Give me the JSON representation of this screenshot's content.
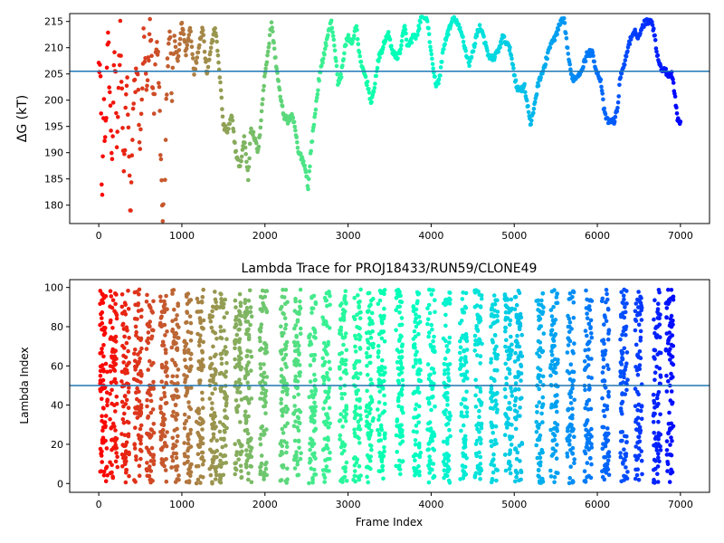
{
  "chart_data": [
    {
      "type": "scatter",
      "title": "",
      "xlabel": "",
      "ylabel": "ΔG (kT)",
      "xlim": [
        -350,
        7350
      ],
      "ylim": [
        176.5,
        216.5
      ],
      "xticks": [
        0,
        1000,
        2000,
        3000,
        4000,
        5000,
        6000,
        7000
      ],
      "yticks": [
        180,
        185,
        190,
        195,
        200,
        205,
        210,
        215
      ],
      "hline": 205.5,
      "hline_color": "#1f77b4",
      "colormap": "rainbow",
      "grid": false,
      "legend": "none",
      "x_max": 7000,
      "trace_knots": [
        [
          0,
          210
        ],
        [
          20,
          205
        ],
        [
          40,
          180
        ],
        [
          60,
          200
        ],
        [
          80,
          190
        ],
        [
          110,
          215
        ],
        [
          130,
          200
        ],
        [
          160,
          188
        ],
        [
          190,
          212
        ],
        [
          220,
          192
        ],
        [
          260,
          214
        ],
        [
          300,
          185
        ],
        [
          340,
          205
        ],
        [
          380,
          178
        ],
        [
          420,
          200
        ],
        [
          460,
          207
        ],
        [
          500,
          190
        ],
        [
          540,
          212
        ],
        [
          580,
          200
        ],
        [
          620,
          215
        ],
        [
          660,
          198
        ],
        [
          700,
          213
        ],
        [
          730,
          200
        ],
        [
          760,
          180
        ],
        [
          790,
          176
        ],
        [
          820,
          205
        ],
        [
          850,
          215
        ],
        [
          880,
          200
        ],
        [
          910,
          212
        ],
        [
          950,
          207
        ],
        [
          1000,
          215
        ],
        [
          1050,
          209
        ],
        [
          1100,
          214
        ],
        [
          1150,
          205
        ],
        [
          1200,
          210
        ],
        [
          1250,
          214
        ],
        [
          1300,
          205
        ],
        [
          1350,
          210
        ],
        [
          1400,
          214
        ],
        [
          1450,
          206
        ],
        [
          1500,
          195
        ],
        [
          1550,
          194
        ],
        [
          1600,
          197
        ],
        [
          1650,
          190
        ],
        [
          1700,
          187
        ],
        [
          1750,
          193
        ],
        [
          1800,
          185
        ],
        [
          1830,
          195
        ],
        [
          1870,
          193
        ],
        [
          1920,
          190
        ],
        [
          1960,
          198
        ],
        [
          2000,
          205
        ],
        [
          2050,
          211
        ],
        [
          2080,
          215
        ],
        [
          2110,
          210
        ],
        [
          2150,
          205
        ],
        [
          2190,
          200
        ],
        [
          2230,
          197
        ],
        [
          2280,
          196
        ],
        [
          2320,
          197
        ],
        [
          2360,
          195
        ],
        [
          2400,
          190
        ],
        [
          2450,
          189
        ],
        [
          2500,
          186
        ],
        [
          2520,
          183
        ],
        [
          2550,
          190
        ],
        [
          2600,
          197
        ],
        [
          2650,
          204
        ],
        [
          2700,
          208
        ],
        [
          2750,
          212
        ],
        [
          2800,
          215
        ],
        [
          2840,
          210
        ],
        [
          2880,
          203
        ],
        [
          2920,
          205
        ],
        [
          2960,
          210
        ],
        [
          3000,
          212
        ],
        [
          3050,
          211
        ],
        [
          3100,
          214
        ],
        [
          3150,
          207
        ],
        [
          3200,
          205
        ],
        [
          3250,
          202
        ],
        [
          3280,
          199
        ],
        [
          3320,
          203
        ],
        [
          3370,
          208
        ],
        [
          3420,
          210
        ],
        [
          3480,
          213
        ],
        [
          3520,
          210
        ],
        [
          3580,
          208
        ],
        [
          3620,
          209
        ],
        [
          3680,
          214
        ],
        [
          3720,
          210
        ],
        [
          3780,
          212
        ],
        [
          3830,
          212
        ],
        [
          3880,
          216
        ],
        [
          3940,
          216
        ],
        [
          3980,
          212
        ],
        [
          4020,
          206
        ],
        [
          4060,
          203
        ],
        [
          4100,
          204
        ],
        [
          4140,
          209
        ],
        [
          4180,
          212
        ],
        [
          4230,
          214
        ],
        [
          4280,
          216
        ],
        [
          4330,
          214
        ],
        [
          4380,
          212
        ],
        [
          4420,
          209
        ],
        [
          4460,
          207
        ],
        [
          4500,
          209
        ],
        [
          4540,
          212
        ],
        [
          4580,
          214
        ],
        [
          4620,
          213
        ],
        [
          4660,
          210
        ],
        [
          4700,
          208
        ],
        [
          4760,
          208
        ],
        [
          4820,
          210
        ],
        [
          4860,
          212
        ],
        [
          4910,
          211
        ],
        [
          4960,
          209
        ],
        [
          5000,
          205
        ],
        [
          5040,
          202
        ],
        [
          5080,
          202
        ],
        [
          5120,
          203
        ],
        [
          5160,
          199
        ],
        [
          5200,
          195
        ],
        [
          5240,
          199
        ],
        [
          5300,
          204
        ],
        [
          5360,
          206
        ],
        [
          5420,
          210
        ],
        [
          5460,
          211
        ],
        [
          5520,
          213
        ],
        [
          5560,
          215
        ],
        [
          5600,
          215
        ],
        [
          5640,
          210
        ],
        [
          5680,
          205
        ],
        [
          5720,
          204
        ],
        [
          5780,
          205
        ],
        [
          5840,
          207
        ],
        [
          5880,
          209
        ],
        [
          5940,
          209
        ],
        [
          6000,
          205
        ],
        [
          6040,
          204
        ],
        [
          6080,
          198
        ],
        [
          6120,
          196
        ],
        [
          6160,
          196
        ],
        [
          6200,
          196
        ],
        [
          6240,
          198
        ],
        [
          6280,
          205
        ],
        [
          6330,
          207
        ],
        [
          6380,
          211
        ],
        [
          6420,
          212
        ],
        [
          6460,
          213
        ],
        [
          6500,
          212
        ],
        [
          6540,
          214
        ],
        [
          6580,
          215
        ],
        [
          6620,
          215
        ],
        [
          6650,
          216
        ],
        [
          6690,
          212
        ],
        [
          6720,
          209
        ],
        [
          6760,
          206
        ],
        [
          6800,
          206
        ],
        [
          6850,
          205
        ],
        [
          6900,
          205
        ],
        [
          6940,
          200
        ],
        [
          6970,
          196
        ],
        [
          7000,
          196
        ]
      ]
    },
    {
      "type": "scatter",
      "title": "Lambda Trace for PROJ18433/RUN59/CLONE49",
      "xlabel": "Frame Index",
      "ylabel": "Lambda Index",
      "xlim": [
        -350,
        7350
      ],
      "ylim": [
        -4.5,
        104
      ],
      "xticks": [
        0,
        1000,
        2000,
        3000,
        4000,
        5000,
        6000,
        7000
      ],
      "yticks": [
        0,
        20,
        40,
        60,
        80,
        100
      ],
      "hline": 50,
      "hline_color": "#1f77b4",
      "colormap": "rainbow",
      "grid": false,
      "legend": "none",
      "x_max": 7000,
      "y_data_range": [
        0,
        99
      ],
      "sweep_centers": [
        60,
        180,
        320,
        470,
        620,
        780,
        920,
        1070,
        1220,
        1380,
        1500,
        1680,
        1800,
        1980,
        2230,
        2390,
        2570,
        2740,
        2940,
        3110,
        3260,
        3400,
        3620,
        3830,
        4000,
        4190,
        4390,
        4570,
        4760,
        4930,
        5050,
        5310,
        5480,
        5680,
        5890,
        6100,
        6320,
        6500,
        6720,
        6870
      ]
    }
  ]
}
